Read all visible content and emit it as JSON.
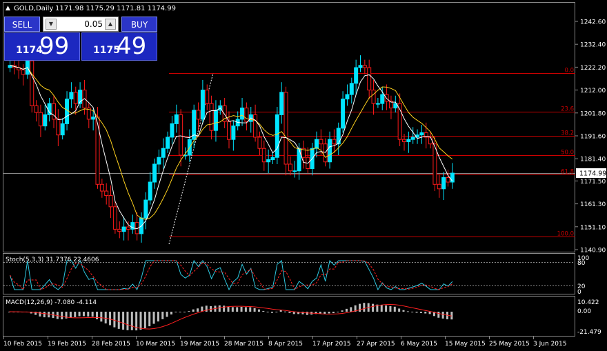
{
  "header": {
    "symbol": "GOLD,Daily",
    "ohlc": "1171.98 1175.29 1171.81 1174.99"
  },
  "trade_panel": {
    "sell_label": "SELL",
    "buy_label": "BUY",
    "lot": "0.05",
    "sell_small": "1174",
    "sell_big": "99",
    "buy_small": "1175",
    "buy_big": "49"
  },
  "price_axis": {
    "labels": [
      "1242.60",
      "1232.40",
      "1222.20",
      "1212.00",
      "1201.80",
      "1191.60",
      "1181.40",
      "1171.50",
      "1161.30",
      "1151.10",
      "1140.90"
    ],
    "current_price": "1174.99"
  },
  "fibonacci": {
    "levels": [
      {
        "label": "0.0",
        "price": 1219.6
      },
      {
        "label": "23.6",
        "price": 1202.4
      },
      {
        "label": "38.2",
        "price": 1191.7
      },
      {
        "label": "50.0",
        "price": 1183.0
      },
      {
        "label": "61.8",
        "price": 1174.4
      },
      {
        "label": "100.0",
        "price": 1146.6
      }
    ]
  },
  "stochastic": {
    "label": "Stoch(5,3,3) 31.7376 22.4606",
    "axis": [
      "100",
      "80",
      "20",
      "0"
    ]
  },
  "macd": {
    "label": "MACD(12,26,9) -7.080 -4.114",
    "axis": [
      "10.422",
      "0.00",
      "-21.479"
    ]
  },
  "date_axis": [
    "10 Feb 2015",
    "19 Feb 2015",
    "28 Feb 2015",
    "10 Mar 2015",
    "19 Mar 2015",
    "28 Mar 2015",
    "8 Apr 2015",
    "17 Apr 2015",
    "27 Apr 2015",
    "6 May 2015",
    "15 May 2015",
    "25 May 2015",
    "3 Jun 2015"
  ],
  "colors": {
    "bull": "#00e5ff",
    "bear": "#ff1a1a",
    "fib": "#cc0000",
    "fast_ma": "#ffffff",
    "slow_ma": "#ffd21f",
    "signal": "#ff2020",
    "panel_blue": "#1c28c0"
  }
}
